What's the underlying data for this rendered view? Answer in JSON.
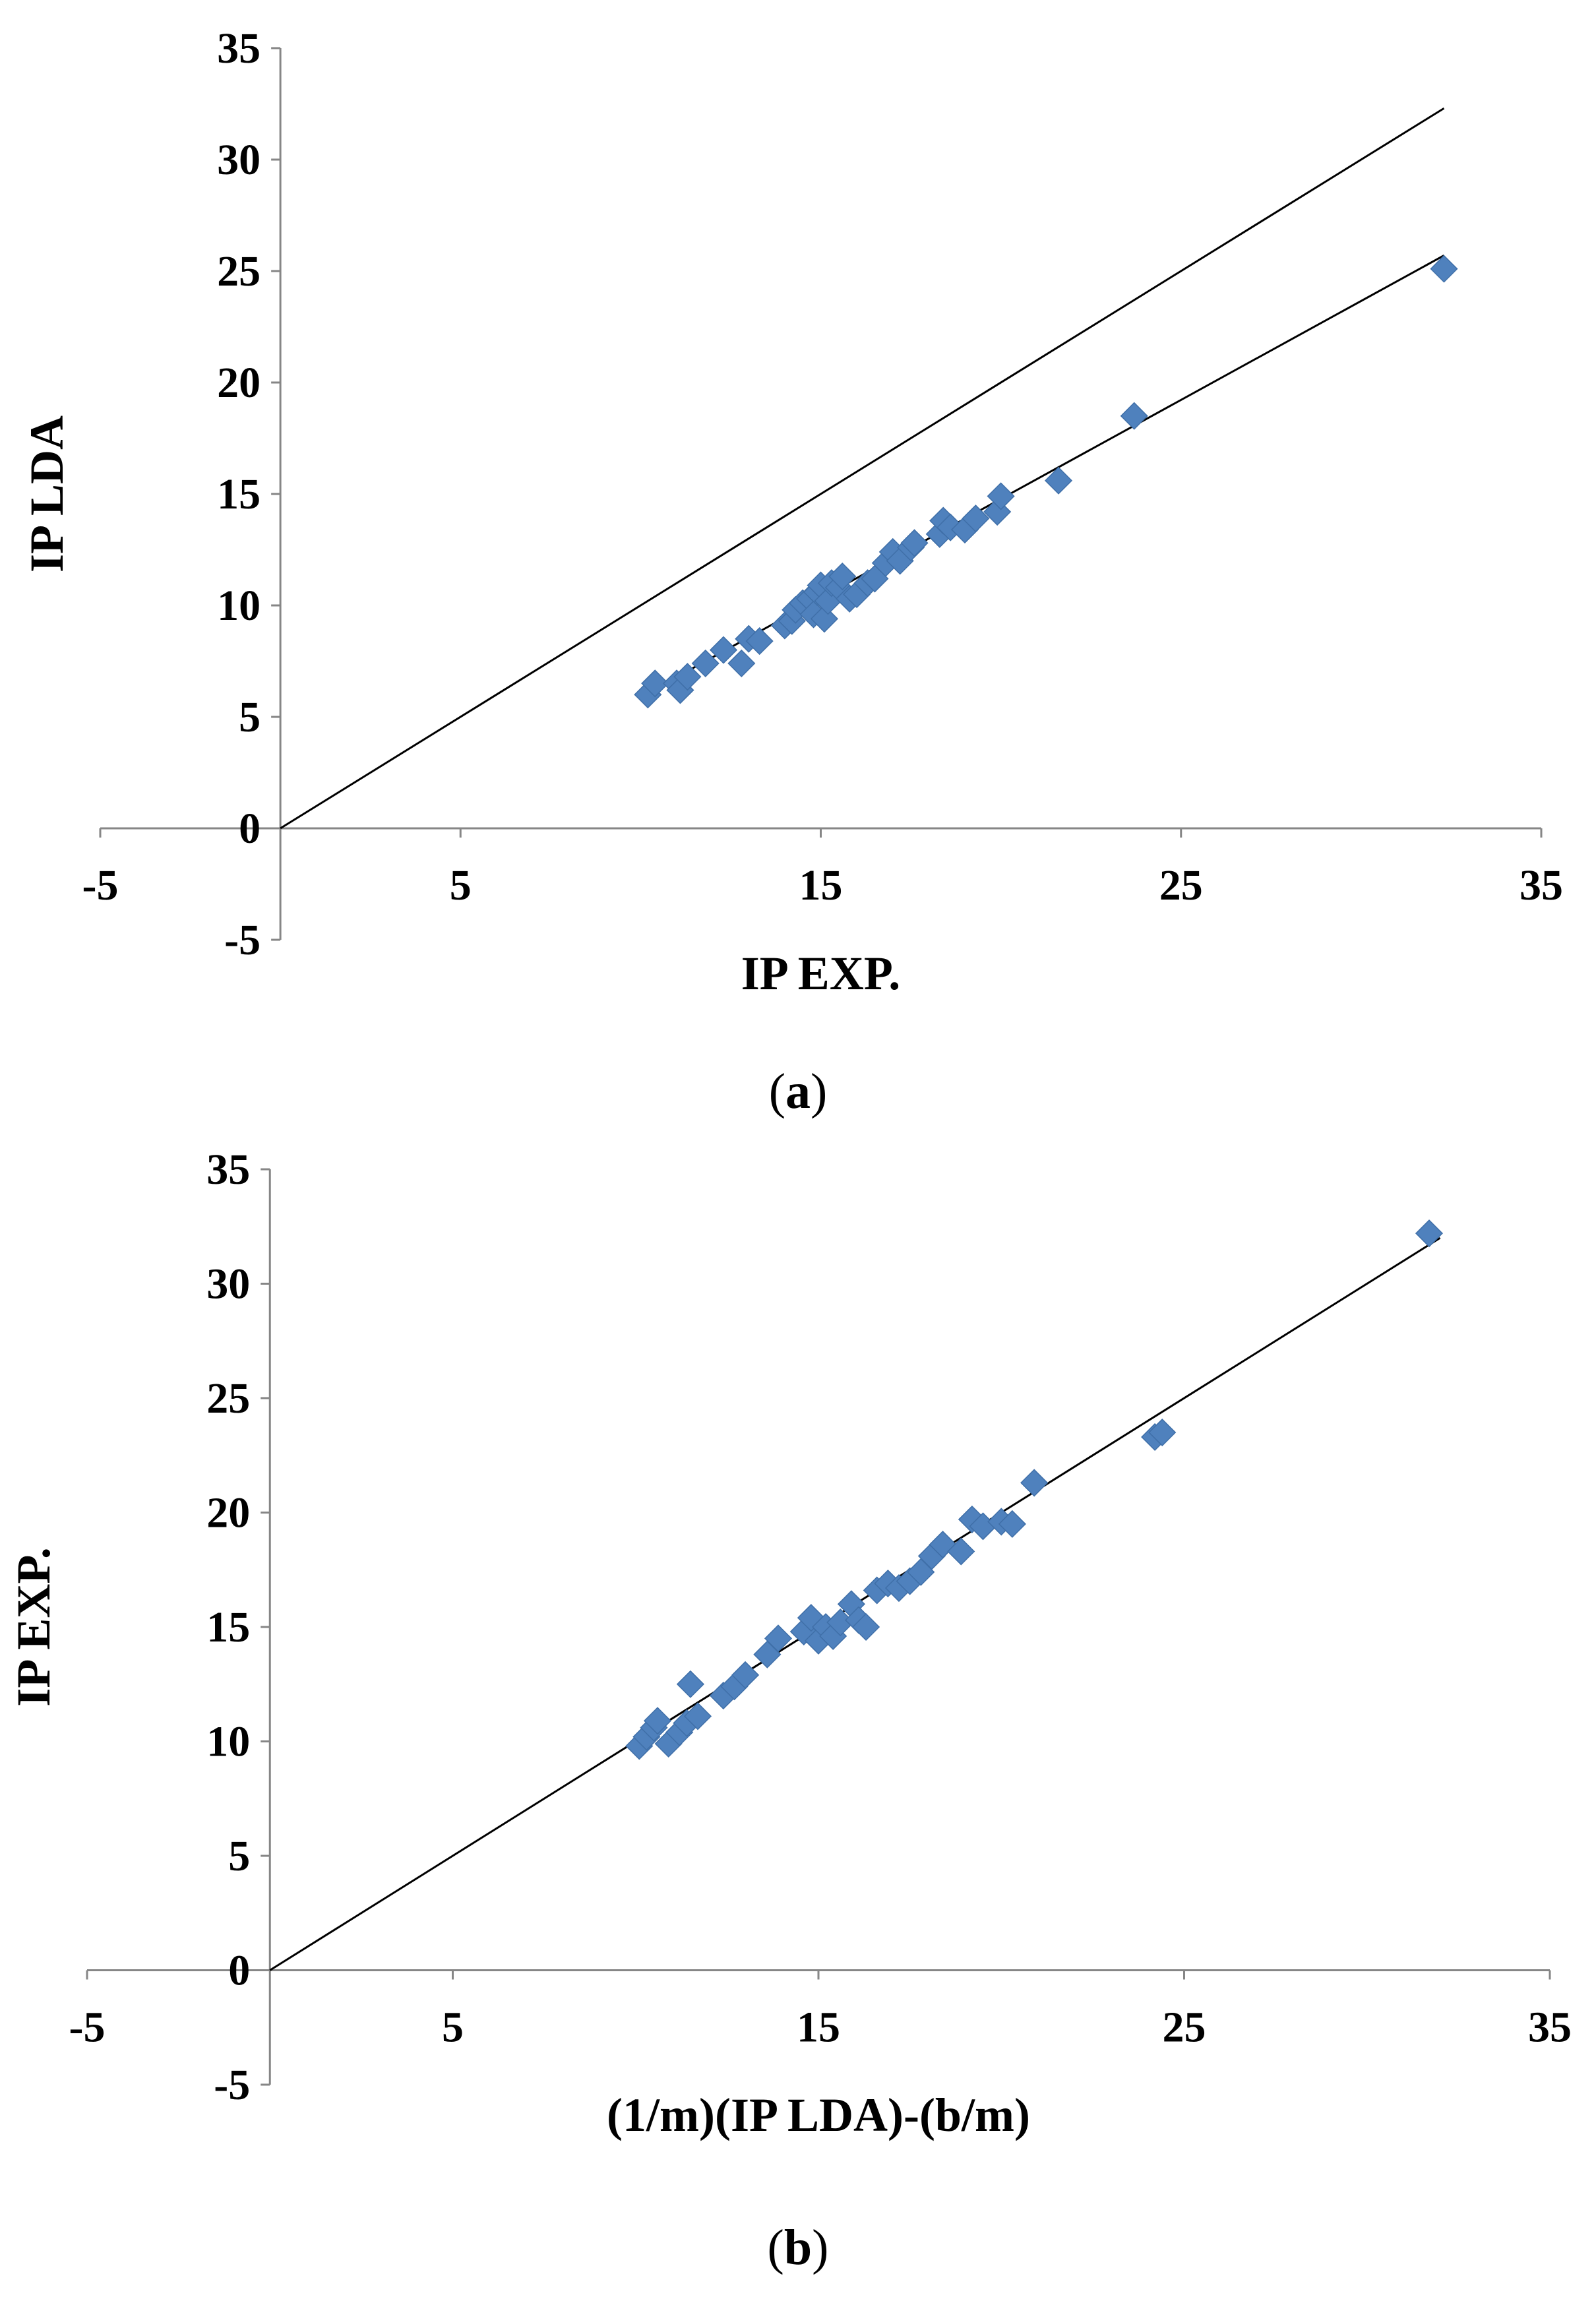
{
  "chart_data": [
    {
      "type": "scatter",
      "panel": "a",
      "caption_letter": "a",
      "xlabel": "IP EXP.",
      "ylabel": "IP LDA",
      "xlim": [
        -5,
        35
      ],
      "ylim": [
        -5,
        35
      ],
      "xticks": [
        -5,
        5,
        15,
        25,
        35
      ],
      "yticks": [
        -5,
        0,
        5,
        10,
        15,
        20,
        25,
        30,
        35
      ],
      "marker_color": "#4F81BD",
      "line_color": "#000000",
      "lines": [
        {
          "x": [
            0,
            32.3
          ],
          "y": [
            0,
            32.3
          ]
        },
        {
          "x": [
            10,
            32.3
          ],
          "y": [
            5.9,
            25.7
          ]
        }
      ],
      "points": [
        [
          10.2,
          6.0
        ],
        [
          10.4,
          6.5
        ],
        [
          11.0,
          6.5
        ],
        [
          11.1,
          6.2
        ],
        [
          11.3,
          6.8
        ],
        [
          11.8,
          7.4
        ],
        [
          12.3,
          8.0
        ],
        [
          12.8,
          7.4
        ],
        [
          13.0,
          8.5
        ],
        [
          13.3,
          8.4
        ],
        [
          14.0,
          9.1
        ],
        [
          14.2,
          9.3
        ],
        [
          14.3,
          9.8
        ],
        [
          14.5,
          10.1
        ],
        [
          14.7,
          10.3
        ],
        [
          14.8,
          9.6
        ],
        [
          14.9,
          10.6
        ],
        [
          15.0,
          10.9
        ],
        [
          15.1,
          9.4
        ],
        [
          15.2,
          10.2
        ],
        [
          15.3,
          11.0
        ],
        [
          15.5,
          10.8
        ],
        [
          15.6,
          11.3
        ],
        [
          15.8,
          10.3
        ],
        [
          16.0,
          10.5
        ],
        [
          16.3,
          11.0
        ],
        [
          16.5,
          11.2
        ],
        [
          16.8,
          11.9
        ],
        [
          17.0,
          12.4
        ],
        [
          17.2,
          12.0
        ],
        [
          17.5,
          12.6
        ],
        [
          17.6,
          12.8
        ],
        [
          18.3,
          13.2
        ],
        [
          18.4,
          13.8
        ],
        [
          18.6,
          13.5
        ],
        [
          19.0,
          13.4
        ],
        [
          19.3,
          13.9
        ],
        [
          19.9,
          14.2
        ],
        [
          20.0,
          14.9
        ],
        [
          21.6,
          15.6
        ],
        [
          23.7,
          18.5
        ],
        [
          32.3,
          25.1
        ]
      ]
    },
    {
      "type": "scatter",
      "panel": "b",
      "caption_letter": "b",
      "xlabel": "(1/m)(IP LDA)-(b/m)",
      "ylabel": "IP EXP.",
      "xlim": [
        -5,
        35
      ],
      "ylim": [
        -5,
        35
      ],
      "xticks": [
        -5,
        5,
        15,
        25,
        35
      ],
      "yticks": [
        -5,
        0,
        5,
        10,
        15,
        20,
        25,
        30,
        35
      ],
      "marker_color": "#4F81BD",
      "line_color": "#000000",
      "lines": [
        {
          "x": [
            0,
            32.0
          ],
          "y": [
            0,
            32.0
          ]
        }
      ],
      "points": [
        [
          10.1,
          9.8
        ],
        [
          10.3,
          10.2
        ],
        [
          10.5,
          10.6
        ],
        [
          10.6,
          10.9
        ],
        [
          10.9,
          9.9
        ],
        [
          11.2,
          10.4
        ],
        [
          11.4,
          10.8
        ],
        [
          11.5,
          12.5
        ],
        [
          11.7,
          11.1
        ],
        [
          12.4,
          12.0
        ],
        [
          12.7,
          12.4
        ],
        [
          13.0,
          12.9
        ],
        [
          13.6,
          13.8
        ],
        [
          13.9,
          14.5
        ],
        [
          14.6,
          14.8
        ],
        [
          14.8,
          15.4
        ],
        [
          15.0,
          14.4
        ],
        [
          15.2,
          15.0
        ],
        [
          15.4,
          14.6
        ],
        [
          15.6,
          15.2
        ],
        [
          15.9,
          16.0
        ],
        [
          16.1,
          15.3
        ],
        [
          16.3,
          15.0
        ],
        [
          16.6,
          16.6
        ],
        [
          16.9,
          16.9
        ],
        [
          17.2,
          16.7
        ],
        [
          17.5,
          17.0
        ],
        [
          17.8,
          17.4
        ],
        [
          18.1,
          18.1
        ],
        [
          18.4,
          18.6
        ],
        [
          18.9,
          18.3
        ],
        [
          19.2,
          19.7
        ],
        [
          19.5,
          19.4
        ],
        [
          20.0,
          19.6
        ],
        [
          20.3,
          19.5
        ],
        [
          20.9,
          21.3
        ],
        [
          24.2,
          23.3
        ],
        [
          24.4,
          23.5
        ],
        [
          31.7,
          32.2
        ]
      ]
    }
  ]
}
